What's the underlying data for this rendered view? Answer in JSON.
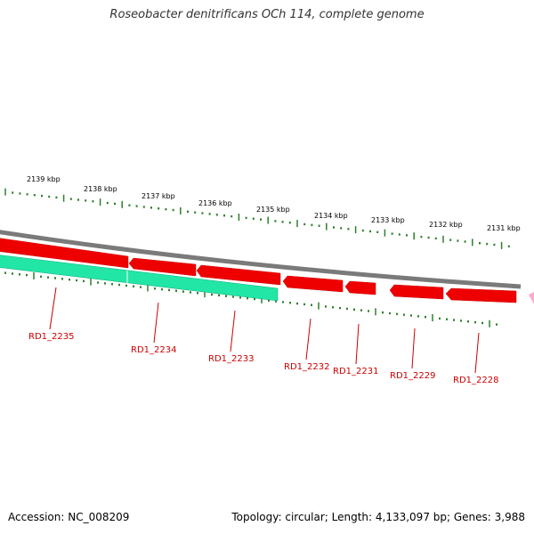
{
  "title": "Roseobacter denitrificans OCh 114, complete genome",
  "footer": {
    "accession": "Accession: NC_008209",
    "summary": "Topology: circular; Length: 4,133,097 bp; Genes: 3,988"
  },
  "colors": {
    "backbone": "#777777",
    "forward_gene": "#ee0000",
    "reverse_gene": "#11dd99",
    "partial_gene": "#ff9fc0",
    "tick": "#2f7f2f",
    "gene_label": "#cc0000"
  },
  "ruler": {
    "unit": "kbp",
    "labels": [
      "2139 kbp",
      "2138 kbp",
      "2137 kbp",
      "2136 kbp",
      "2135 kbp",
      "2134 kbp",
      "2133 kbp",
      "2132 kbp",
      "2131 kbp"
    ]
  },
  "genes": [
    {
      "locus": "RD1_2235",
      "strand": "+",
      "color": "red"
    },
    {
      "locus": "RD1_2234",
      "strand": "-",
      "color": "green"
    },
    {
      "locus": "RD1_2233",
      "strand": "+",
      "color": "red"
    },
    {
      "locus": "RD1_2232",
      "strand": "+",
      "color": "red"
    },
    {
      "locus": "RD1_2231",
      "strand": "+",
      "color": "red"
    },
    {
      "locus": "RD1_2229",
      "strand": "+",
      "color": "red"
    },
    {
      "locus": "RD1_2228",
      "strand": "+",
      "color": "red"
    }
  ]
}
